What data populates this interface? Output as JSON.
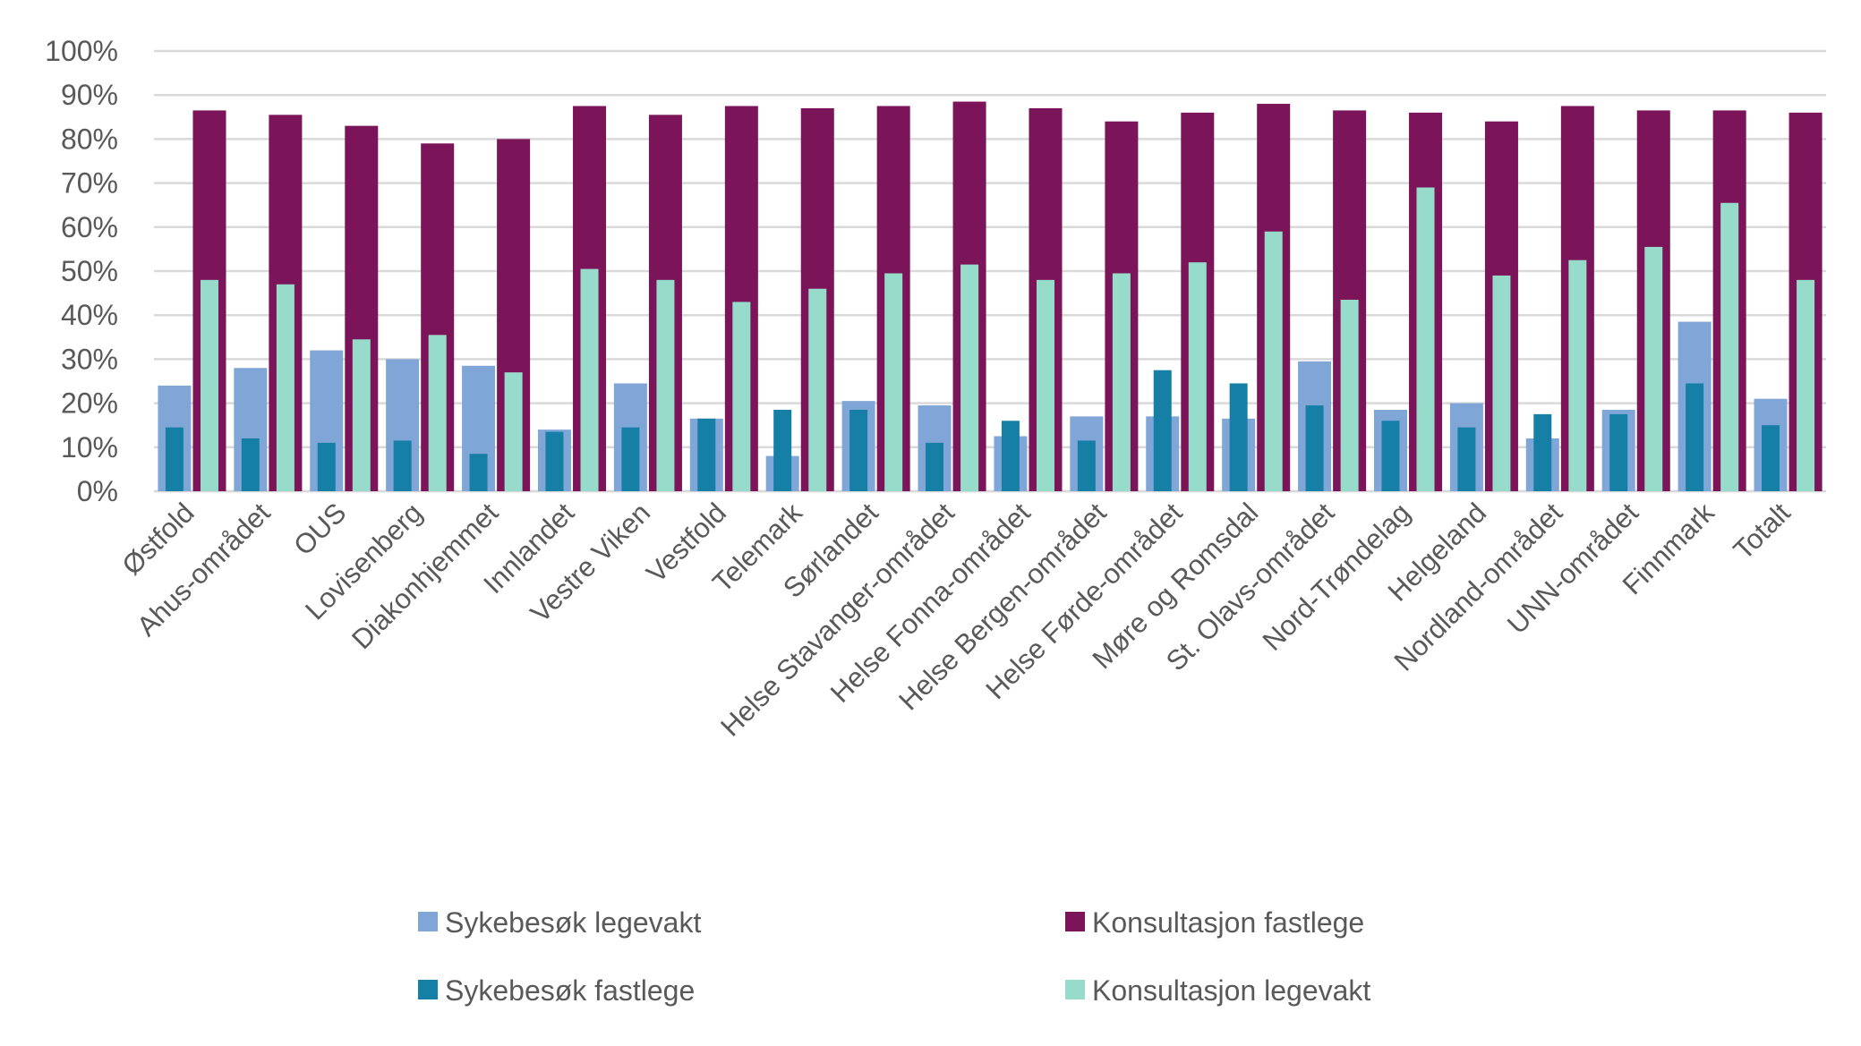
{
  "chart_data": {
    "type": "bar",
    "title": "",
    "xlabel": "",
    "ylabel": "",
    "ylim": [
      0,
      100
    ],
    "y_ticks": [
      "0%",
      "10%",
      "20%",
      "30%",
      "40%",
      "50%",
      "60%",
      "70%",
      "80%",
      "90%",
      "100%"
    ],
    "grid": true,
    "legend_position": "bottom",
    "categories": [
      "Østfold",
      "Ahus-området",
      "OUS",
      "Lovisenberg",
      "Diakonhjemmet",
      "Innlandet",
      "Vestre Viken",
      "Vestfold",
      "Telemark",
      "Sørlandet",
      "Helse Stavanger-området",
      "Helse Fonna-området",
      "Helse Bergen-området",
      "Helse Førde-området",
      "Møre og Romsdal",
      "St. Olavs-området",
      "Nord-Trøndelag",
      "Helgeland",
      "Nordland-området",
      "UNN-området",
      "Finnmark",
      "Totalt"
    ],
    "series": [
      {
        "name": "Sykebesøk legevakt",
        "color": "#7FA6D6",
        "values": [
          24,
          28,
          32,
          30,
          28.5,
          14,
          24.5,
          16.5,
          8,
          20.5,
          19.5,
          12.5,
          17,
          17,
          16.5,
          29.5,
          18.5,
          20,
          12,
          18.5,
          38.5,
          21
        ]
      },
      {
        "name": "Sykebesøk fastlege",
        "color": "#157FA6",
        "values": [
          14.5,
          12,
          11,
          11.5,
          8.5,
          13.5,
          14.5,
          16.5,
          18.5,
          18.5,
          11,
          16,
          11.5,
          27.5,
          24.5,
          19.5,
          16,
          14.5,
          17.5,
          17.5,
          24.5,
          15
        ]
      },
      {
        "name": "Konsultasjon fastlege",
        "color": "#7B1458",
        "values": [
          86.5,
          85.5,
          83,
          79,
          80,
          87.5,
          85.5,
          87.5,
          87,
          87.5,
          88.5,
          87,
          84,
          86,
          88,
          86.5,
          86,
          84,
          87.5,
          86.5,
          86.5,
          86
        ]
      },
      {
        "name": "Konsultasjon legevakt",
        "color": "#97DCCA",
        "values": [
          48,
          47,
          34.5,
          35.5,
          27,
          50.5,
          48,
          43,
          46,
          49.5,
          51.5,
          48,
          49.5,
          52,
          59,
          43.5,
          69,
          49,
          52.5,
          55.5,
          65.5,
          48
        ]
      }
    ],
    "legend_order": [
      0,
      2,
      1,
      3
    ]
  }
}
